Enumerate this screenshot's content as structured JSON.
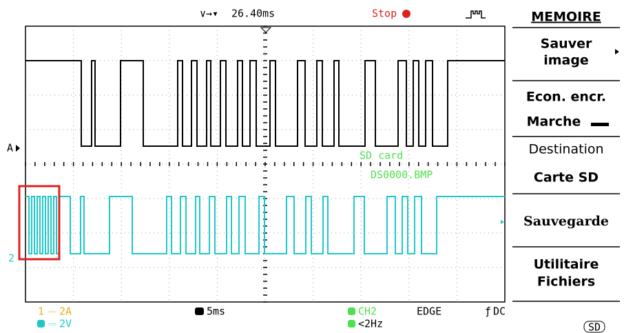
{
  "top": {
    "time": "26.40ms",
    "status": "Stop"
  },
  "screen": {
    "marker_a": "A",
    "marker_2": "2",
    "message_1": "SD card",
    "message_2": "DS0000.BMP"
  },
  "menu": {
    "title": "MEMOIRE",
    "items": [
      {
        "line1": "Sauver",
        "line2": "image"
      },
      {
        "line1": "Econ. encr.",
        "line2": "Marche"
      },
      {
        "line1": "Destination",
        "line2": "Carte SD"
      },
      {
        "line1": "Sauvegarde"
      },
      {
        "line1": "Utilitaire",
        "line2": "Fichiers"
      }
    ]
  },
  "bottom": {
    "ch1_num": "1",
    "ch1_scale": "2A",
    "ch2_scale": "2V",
    "timebase": "5ms",
    "trigger_source": "CH2",
    "trigger_type": "EDGE",
    "coupling": "DC",
    "frequency": "<2Hz",
    "sd": "SD"
  }
}
